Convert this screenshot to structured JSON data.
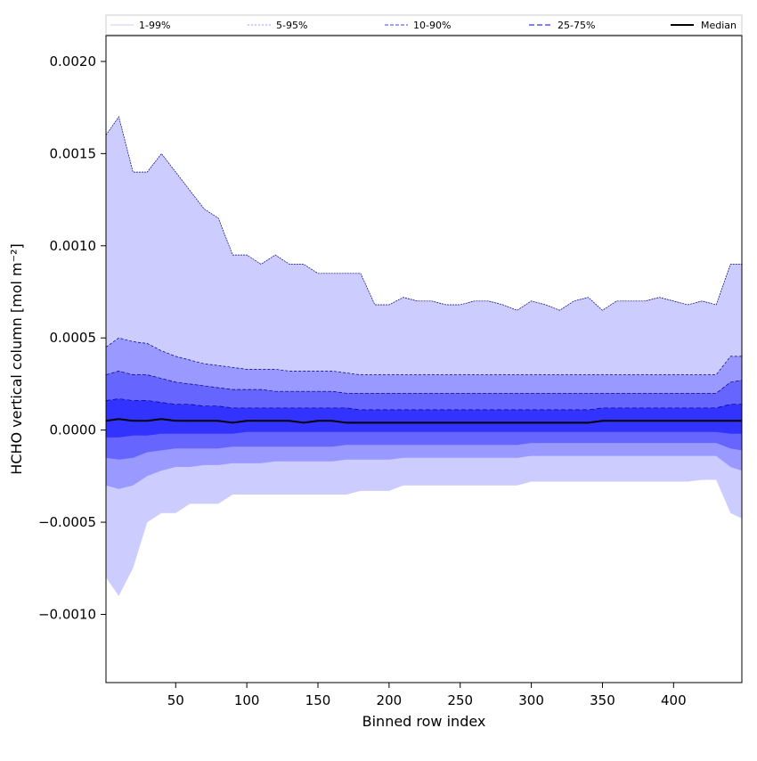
{
  "chart_data": {
    "type": "area",
    "title": "",
    "xlabel": "Binned row index",
    "ylabel": "HCHO vertical column [mol m⁻²]",
    "xlim": [
      1,
      448
    ],
    "ylim": [
      -0.00137,
      0.00214
    ],
    "xticks": [
      50,
      100,
      150,
      200,
      250,
      300,
      350,
      400
    ],
    "yticks": [
      -0.001,
      -0.0005,
      0.0,
      0.0005,
      0.001,
      0.0015,
      0.002
    ],
    "ytick_labels": [
      "−0.0010",
      "−0.0005",
      "0.0000",
      "0.0005",
      "0.0010",
      "0.0015",
      "0.0020"
    ],
    "legend": {
      "location": "top",
      "entries": [
        "1-99%",
        "5-95%",
        "10-90%",
        "25-75%",
        "Median"
      ]
    },
    "colors": {
      "band_outer": "#ccccff",
      "band_5_95": "#9999ff",
      "band_10_90": "#6666ff",
      "band_25_75": "#3333ff",
      "line_upper": "#000080",
      "median": "#000000"
    },
    "x": [
      1,
      10,
      20,
      30,
      40,
      50,
      60,
      70,
      80,
      90,
      100,
      110,
      120,
      130,
      140,
      150,
      160,
      170,
      180,
      190,
      200,
      210,
      220,
      230,
      240,
      250,
      260,
      270,
      280,
      290,
      300,
      310,
      320,
      330,
      340,
      350,
      360,
      370,
      380,
      390,
      400,
      410,
      420,
      430,
      440,
      448
    ],
    "series": [
      {
        "name": "1%",
        "values": [
          -0.0008,
          -0.0009,
          -0.00075,
          -0.0005,
          -0.00045,
          -0.00045,
          -0.0004,
          -0.0004,
          -0.0004,
          -0.00035,
          -0.00035,
          -0.00035,
          -0.00035,
          -0.00035,
          -0.00035,
          -0.00035,
          -0.00035,
          -0.00035,
          -0.00033,
          -0.00033,
          -0.00033,
          -0.0003,
          -0.0003,
          -0.0003,
          -0.0003,
          -0.0003,
          -0.0003,
          -0.0003,
          -0.0003,
          -0.0003,
          -0.00028,
          -0.00028,
          -0.00028,
          -0.00028,
          -0.00028,
          -0.00028,
          -0.00028,
          -0.00028,
          -0.00028,
          -0.00028,
          -0.00028,
          -0.00028,
          -0.00027,
          -0.00027,
          -0.00045,
          -0.00048
        ]
      },
      {
        "name": "5%",
        "values": [
          -0.0003,
          -0.00032,
          -0.0003,
          -0.00025,
          -0.00022,
          -0.0002,
          -0.0002,
          -0.00019,
          -0.00019,
          -0.00018,
          -0.00018,
          -0.00018,
          -0.00017,
          -0.00017,
          -0.00017,
          -0.00017,
          -0.00017,
          -0.00016,
          -0.00016,
          -0.00016,
          -0.00016,
          -0.00015,
          -0.00015,
          -0.00015,
          -0.00015,
          -0.00015,
          -0.00015,
          -0.00015,
          -0.00015,
          -0.00015,
          -0.00014,
          -0.00014,
          -0.00014,
          -0.00014,
          -0.00014,
          -0.00014,
          -0.00014,
          -0.00014,
          -0.00014,
          -0.00014,
          -0.00014,
          -0.00014,
          -0.00014,
          -0.00014,
          -0.0002,
          -0.00022
        ]
      },
      {
        "name": "10%",
        "values": [
          -0.00015,
          -0.00016,
          -0.00015,
          -0.00012,
          -0.00011,
          -0.0001,
          -0.0001,
          -0.0001,
          -0.0001,
          -9e-05,
          -9e-05,
          -9e-05,
          -9e-05,
          -9e-05,
          -9e-05,
          -9e-05,
          -9e-05,
          -8e-05,
          -8e-05,
          -8e-05,
          -8e-05,
          -8e-05,
          -8e-05,
          -8e-05,
          -8e-05,
          -8e-05,
          -8e-05,
          -8e-05,
          -8e-05,
          -8e-05,
          -7e-05,
          -7e-05,
          -7e-05,
          -7e-05,
          -7e-05,
          -7e-05,
          -7e-05,
          -7e-05,
          -7e-05,
          -7e-05,
          -7e-05,
          -7e-05,
          -7e-05,
          -7e-05,
          -0.0001,
          -0.00011
        ]
      },
      {
        "name": "25%",
        "values": [
          -4e-05,
          -4e-05,
          -3e-05,
          -3e-05,
          -2e-05,
          -2e-05,
          -2e-05,
          -2e-05,
          -2e-05,
          -2e-05,
          -1e-05,
          -1e-05,
          -1e-05,
          -1e-05,
          -1e-05,
          -1e-05,
          -1e-05,
          -1e-05,
          -1e-05,
          -1e-05,
          -1e-05,
          -1e-05,
          -1e-05,
          -1e-05,
          -1e-05,
          -1e-05,
          -1e-05,
          -1e-05,
          -1e-05,
          -1e-05,
          -1e-05,
          -1e-05,
          -1e-05,
          -1e-05,
          -1e-05,
          -1e-05,
          -1e-05,
          -1e-05,
          -1e-05,
          -1e-05,
          -1e-05,
          -1e-05,
          -1e-05,
          -1e-05,
          -2e-05,
          -2e-05
        ]
      },
      {
        "name": "Median",
        "values": [
          5e-05,
          6e-05,
          5e-05,
          5e-05,
          6e-05,
          5e-05,
          5e-05,
          5e-05,
          5e-05,
          4e-05,
          5e-05,
          5e-05,
          5e-05,
          5e-05,
          4e-05,
          5e-05,
          5e-05,
          4e-05,
          4e-05,
          4e-05,
          4e-05,
          4e-05,
          4e-05,
          4e-05,
          4e-05,
          4e-05,
          4e-05,
          4e-05,
          4e-05,
          4e-05,
          4e-05,
          4e-05,
          4e-05,
          4e-05,
          4e-05,
          5e-05,
          5e-05,
          5e-05,
          5e-05,
          5e-05,
          5e-05,
          5e-05,
          5e-05,
          5e-05,
          5e-05,
          5e-05
        ]
      },
      {
        "name": "75%",
        "values": [
          0.00016,
          0.00017,
          0.00016,
          0.00016,
          0.00015,
          0.00014,
          0.00014,
          0.00013,
          0.00013,
          0.00012,
          0.00012,
          0.00012,
          0.00012,
          0.00012,
          0.00012,
          0.00012,
          0.00012,
          0.00012,
          0.00011,
          0.00011,
          0.00011,
          0.00011,
          0.00011,
          0.00011,
          0.00011,
          0.00011,
          0.00011,
          0.00011,
          0.00011,
          0.00011,
          0.00011,
          0.00011,
          0.00011,
          0.00011,
          0.00011,
          0.00012,
          0.00012,
          0.00012,
          0.00012,
          0.00012,
          0.00012,
          0.00012,
          0.00012,
          0.00012,
          0.00014,
          0.00014
        ]
      },
      {
        "name": "90%",
        "values": [
          0.0003,
          0.00032,
          0.0003,
          0.0003,
          0.00028,
          0.00026,
          0.00025,
          0.00024,
          0.00023,
          0.00022,
          0.00022,
          0.00022,
          0.00021,
          0.00021,
          0.00021,
          0.00021,
          0.00021,
          0.0002,
          0.0002,
          0.0002,
          0.0002,
          0.0002,
          0.0002,
          0.0002,
          0.0002,
          0.0002,
          0.0002,
          0.0002,
          0.0002,
          0.0002,
          0.0002,
          0.0002,
          0.0002,
          0.0002,
          0.0002,
          0.0002,
          0.0002,
          0.0002,
          0.0002,
          0.0002,
          0.0002,
          0.0002,
          0.0002,
          0.0002,
          0.00026,
          0.00027
        ]
      },
      {
        "name": "95%",
        "values": [
          0.00045,
          0.0005,
          0.00048,
          0.00047,
          0.00043,
          0.0004,
          0.00038,
          0.00036,
          0.00035,
          0.00034,
          0.00033,
          0.00033,
          0.00033,
          0.00032,
          0.00032,
          0.00032,
          0.00032,
          0.00031,
          0.0003,
          0.0003,
          0.0003,
          0.0003,
          0.0003,
          0.0003,
          0.0003,
          0.0003,
          0.0003,
          0.0003,
          0.0003,
          0.0003,
          0.0003,
          0.0003,
          0.0003,
          0.0003,
          0.0003,
          0.0003,
          0.0003,
          0.0003,
          0.0003,
          0.0003,
          0.0003,
          0.0003,
          0.0003,
          0.0003,
          0.0004,
          0.0004
        ]
      },
      {
        "name": "99%",
        "values": [
          0.0016,
          0.0017,
          0.0014,
          0.0014,
          0.0015,
          0.0014,
          0.0013,
          0.0012,
          0.00115,
          0.00095,
          0.00095,
          0.0009,
          0.00095,
          0.0009,
          0.0009,
          0.00085,
          0.00085,
          0.00085,
          0.00085,
          0.00068,
          0.00068,
          0.00072,
          0.0007,
          0.0007,
          0.00068,
          0.00068,
          0.0007,
          0.0007,
          0.00068,
          0.00065,
          0.0007,
          0.00068,
          0.00065,
          0.0007,
          0.00072,
          0.00065,
          0.0007,
          0.0007,
          0.0007,
          0.00072,
          0.0007,
          0.00068,
          0.0007,
          0.00068,
          0.0009,
          0.0009
        ]
      }
    ]
  }
}
